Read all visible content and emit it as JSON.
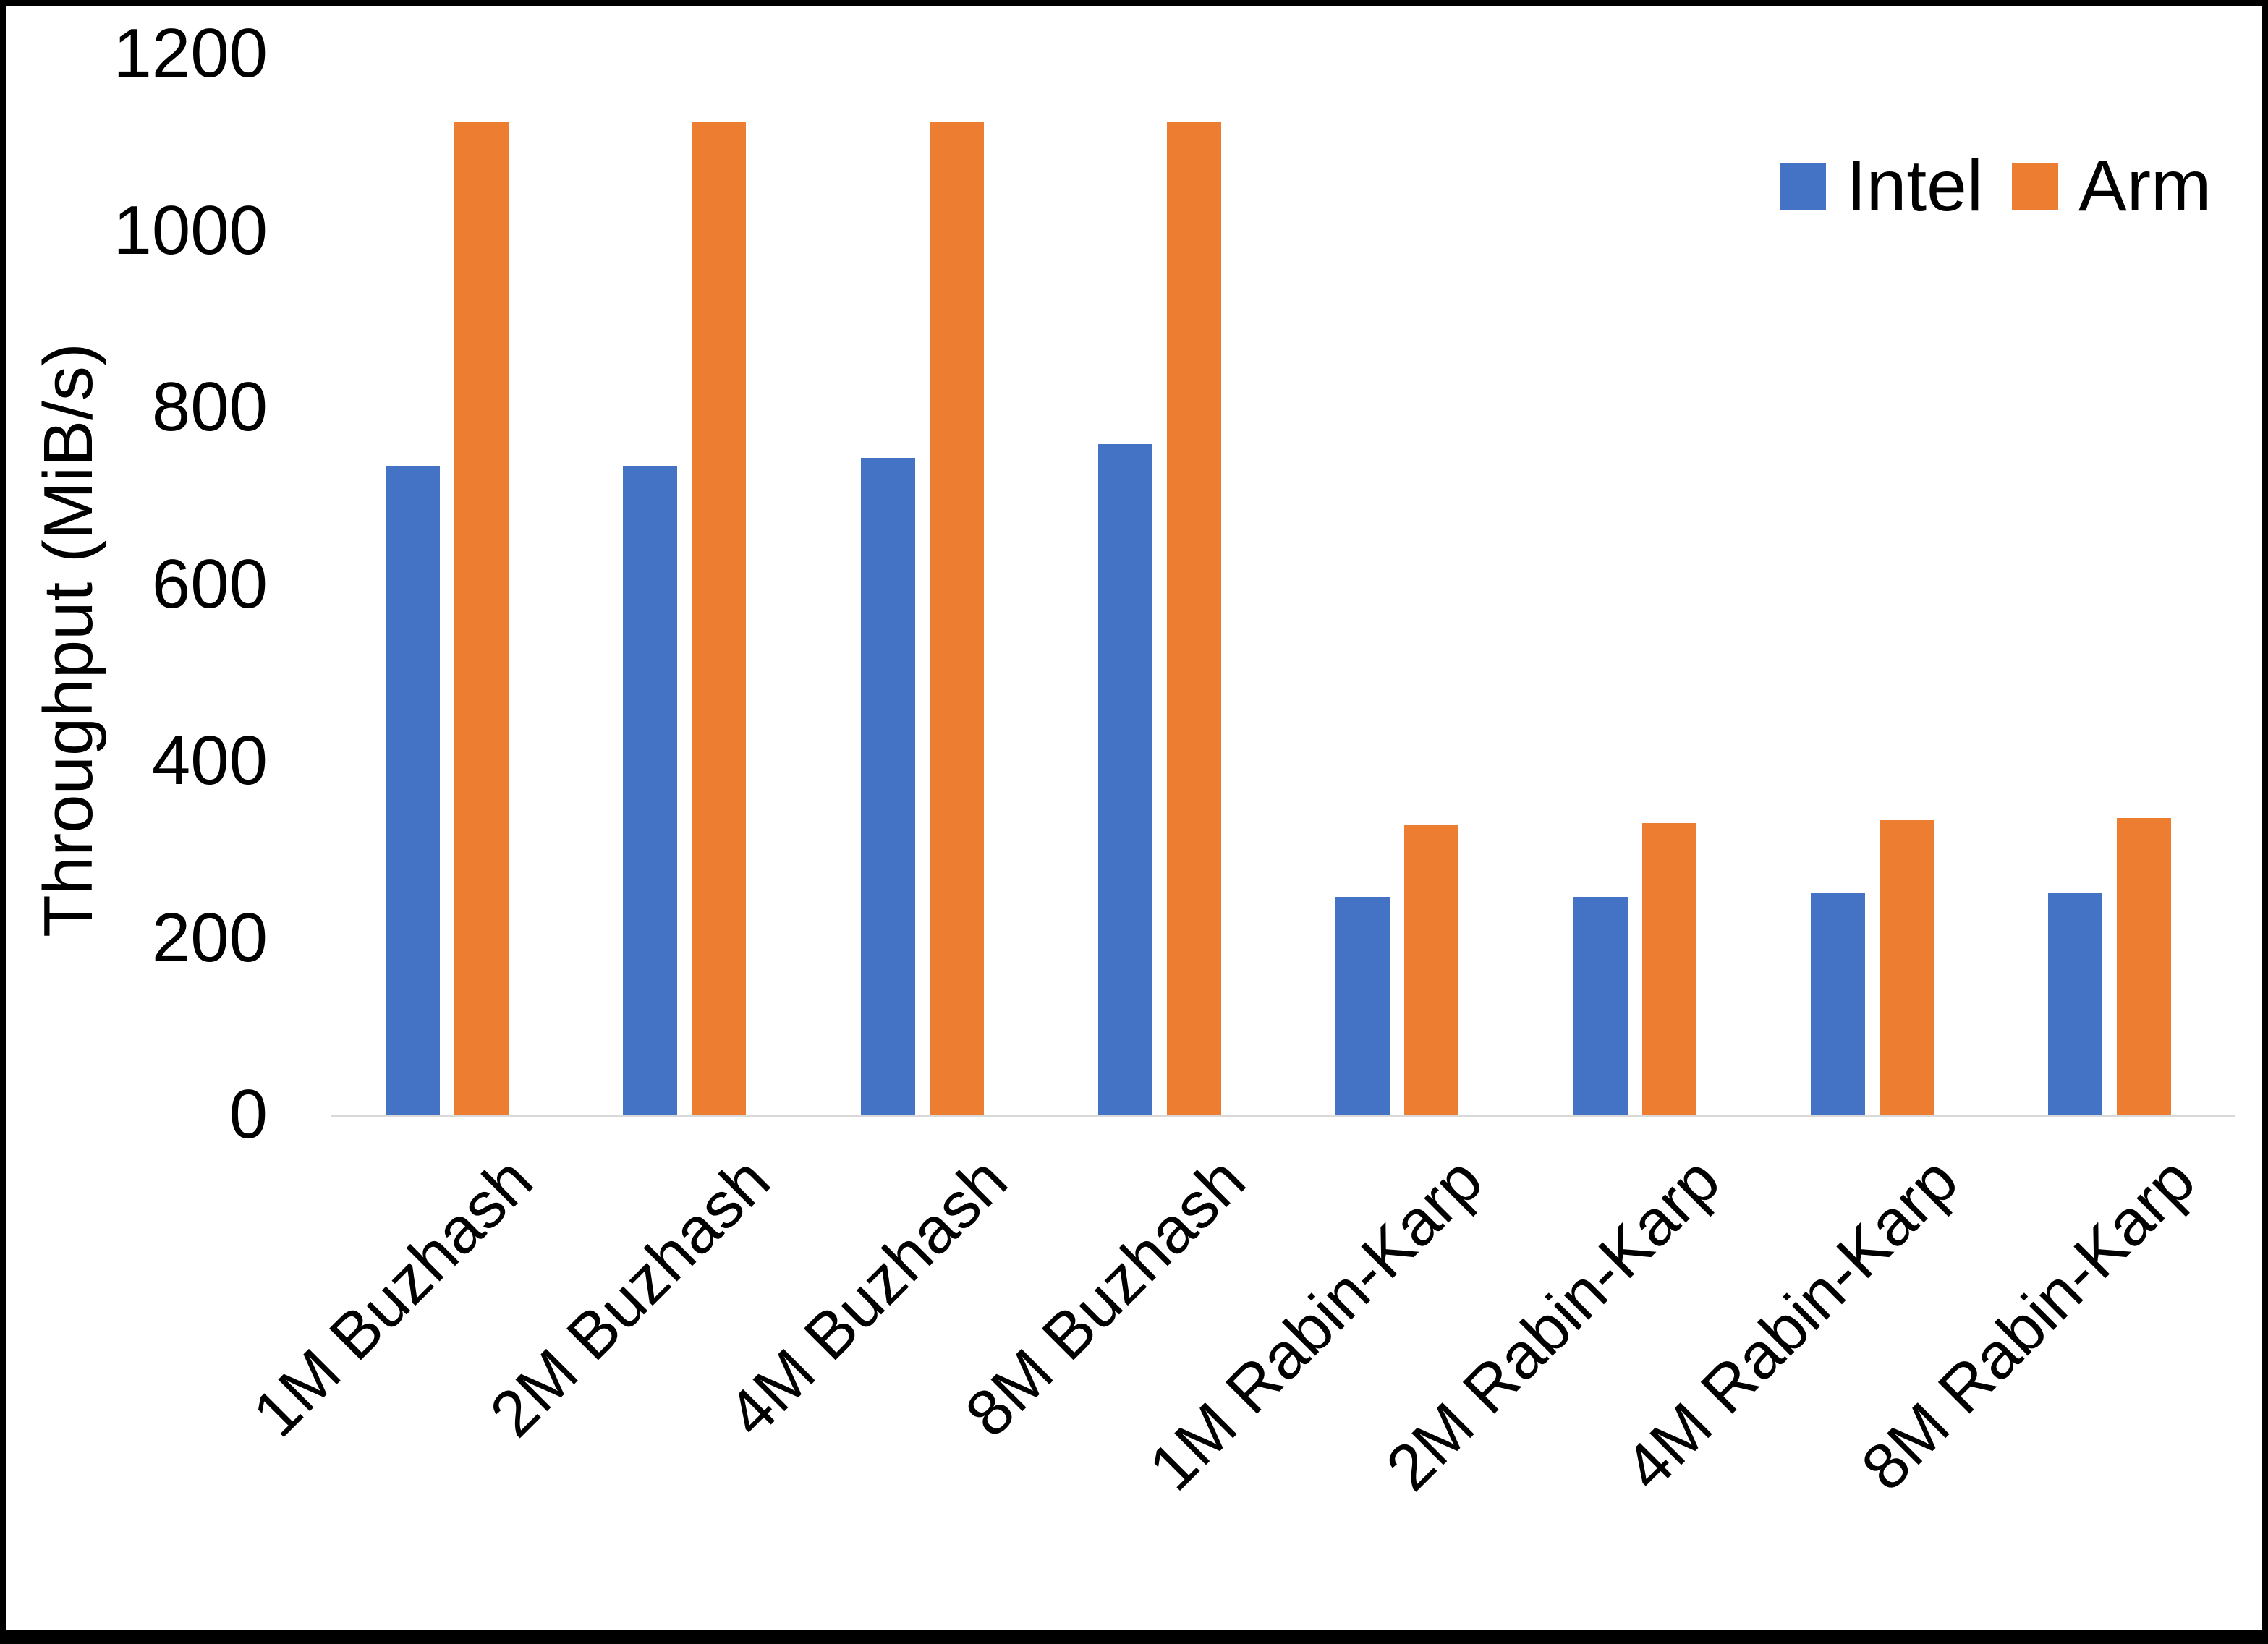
{
  "chart_data": {
    "type": "bar",
    "title": "",
    "categories": [
      "1M Buzhash",
      "2M Buzhash",
      "4M Buzhash",
      "8M Buzhash",
      "1M Rabin-Karp",
      "2M Rabin-Karp",
      "4M Rabin-Karp",
      "8M Rabin-Karp"
    ],
    "series": [
      {
        "name": "Intel",
        "color": "#4472C4",
        "values": [
          734,
          734,
          743,
          758,
          246,
          246,
          250,
          250
        ]
      },
      {
        "name": "Arm",
        "color": "#ED7D31",
        "values": [
          1122,
          1122,
          1122,
          1122,
          327,
          330,
          333,
          335
        ]
      }
    ],
    "xlabel": "",
    "ylabel": "Throughput (MiB/s)",
    "ylim": [
      0,
      1200
    ],
    "yticks": [
      0,
      200,
      400,
      600,
      800,
      1000,
      1200
    ],
    "grid": false,
    "legend_position": "top-right",
    "axis_line_color": "#D9D9D9",
    "text_color": "#000000",
    "background": "#FFFFFF",
    "border_color": "#000000"
  }
}
